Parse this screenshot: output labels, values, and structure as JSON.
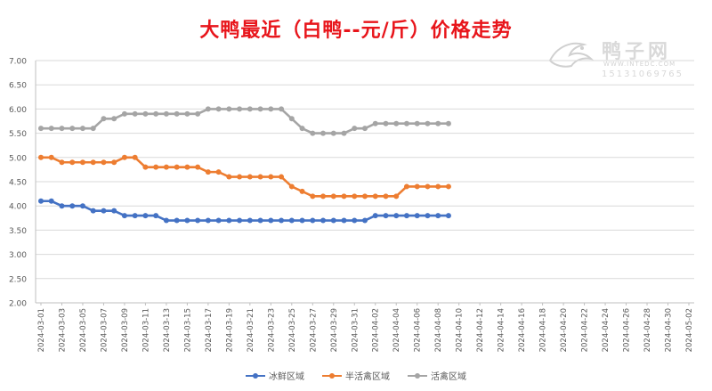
{
  "watermark": {
    "name": "鸭子网",
    "url": "WWW.INTEDC.COM",
    "phone": "15131069765"
  },
  "chart_data": {
    "type": "line",
    "title": "大鸭最近（白鸭--元/斤）价格走势",
    "xlabel": "",
    "ylabel": "",
    "ylim": [
      2.0,
      7.0
    ],
    "yticks": [
      "2.00",
      "2.50",
      "3.00",
      "3.50",
      "4.00",
      "4.50",
      "5.00",
      "5.50",
      "6.00",
      "6.50",
      "7.00"
    ],
    "xticks": [
      "2024-03-01",
      "2024-03-03",
      "2024-03-05",
      "2024-03-07",
      "2024-03-09",
      "2024-03-11",
      "2024-03-13",
      "2024-03-15",
      "2024-03-17",
      "2024-03-19",
      "2024-03-21",
      "2024-03-23",
      "2024-03-25",
      "2024-03-27",
      "2024-03-29",
      "2024-03-31",
      "2024-04-02",
      "2024-04-04",
      "2024-04-06",
      "2024-04-08",
      "2024-04-10",
      "2024-04-12",
      "2024-04-14",
      "2024-04-16",
      "2024-04-18",
      "2024-04-20",
      "2024-04-22",
      "2024-04-24",
      "2024-04-26",
      "2024-04-28",
      "2024-04-30",
      "2024-05-02"
    ],
    "x_start": "2024-03-01",
    "x_end": "2024-05-02",
    "grid": "horizontal",
    "legend_position": "bottom",
    "series": [
      {
        "name": "冰鲜区域",
        "color": "#4472c4",
        "values": [
          4.1,
          4.1,
          4.0,
          4.0,
          4.0,
          3.9,
          3.9,
          3.9,
          3.8,
          3.8,
          3.8,
          3.8,
          3.7,
          3.7,
          3.7,
          3.7,
          3.7,
          3.7,
          3.7,
          3.7,
          3.7,
          3.7,
          3.7,
          3.7,
          3.7,
          3.7,
          3.7,
          3.7,
          3.7,
          3.7,
          3.7,
          3.7,
          3.8,
          3.8,
          3.8,
          3.8,
          3.8,
          3.8,
          3.8,
          3.8
        ]
      },
      {
        "name": "半活禽区域",
        "color": "#ed7d31",
        "values": [
          5.0,
          5.0,
          4.9,
          4.9,
          4.9,
          4.9,
          4.9,
          4.9,
          5.0,
          5.0,
          4.8,
          4.8,
          4.8,
          4.8,
          4.8,
          4.8,
          4.7,
          4.7,
          4.6,
          4.6,
          4.6,
          4.6,
          4.6,
          4.6,
          4.4,
          4.3,
          4.2,
          4.2,
          4.2,
          4.2,
          4.2,
          4.2,
          4.2,
          4.2,
          4.2,
          4.4,
          4.4,
          4.4,
          4.4,
          4.4
        ]
      },
      {
        "name": "活禽区域",
        "color": "#a5a5a5",
        "values": [
          5.6,
          5.6,
          5.6,
          5.6,
          5.6,
          5.6,
          5.8,
          5.8,
          5.9,
          5.9,
          5.9,
          5.9,
          5.9,
          5.9,
          5.9,
          5.9,
          6.0,
          6.0,
          6.0,
          6.0,
          6.0,
          6.0,
          6.0,
          6.0,
          5.8,
          5.6,
          5.5,
          5.5,
          5.5,
          5.5,
          5.6,
          5.6,
          5.7,
          5.7,
          5.7,
          5.7,
          5.7,
          5.7,
          5.7,
          5.7
        ]
      }
    ]
  }
}
